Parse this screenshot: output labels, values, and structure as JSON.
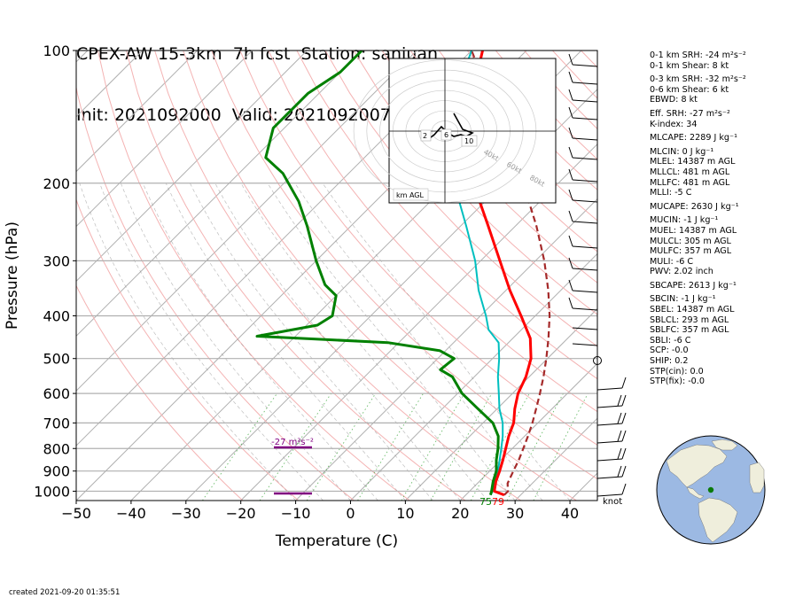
{
  "title": {
    "line1": "CPEX-AW 15-3km  7h fcst  Station: sanjuan",
    "line2": "Init: 2021092000  Valid: 202109200700 UTC"
  },
  "chart_data": {
    "type": "line",
    "subtype": "skew-T log-p",
    "xlabel": "Temperature (C)",
    "ylabel": "Pressure (hPa)",
    "xlim": [
      -50,
      45
    ],
    "ylim": [
      1050,
      100
    ],
    "y_scale": "log",
    "x_ticks": [
      -50,
      -40,
      -30,
      -20,
      -10,
      0,
      10,
      20,
      30,
      40
    ],
    "y_ticks": [
      1000,
      900,
      800,
      700,
      600,
      500,
      400,
      300,
      200,
      100
    ],
    "x_tick_labels": [
      "−50",
      "−40",
      "−30",
      "−20",
      "−10",
      "0",
      "10",
      "20",
      "30",
      "40"
    ],
    "y_tick_labels": [
      "1000",
      "900",
      "800",
      "700",
      "600",
      "500",
      "400",
      "300",
      "200",
      "100"
    ],
    "colors": {
      "temperature": "#ff0000",
      "dewpoint": "#008000",
      "wetbulb": "#00bfbf",
      "parcel": "#a52a2a",
      "srh_marker": "#800080"
    },
    "series": [
      {
        "key": "temperature",
        "points": [
          [
            1020,
            27
          ],
          [
            1000,
            24.5
          ],
          [
            950,
            23
          ],
          [
            900,
            21.8
          ],
          [
            850,
            20.4
          ],
          [
            800,
            18.8
          ],
          [
            750,
            17.1
          ],
          [
            700,
            15.6
          ],
          [
            650,
            13.2
          ],
          [
            600,
            11
          ],
          [
            550,
            9.4
          ],
          [
            500,
            7
          ],
          [
            450,
            3.2
          ],
          [
            400,
            -2.6
          ],
          [
            350,
            -9.3
          ],
          [
            300,
            -16.5
          ],
          [
            250,
            -25
          ],
          [
            200,
            -35.5
          ],
          [
            175,
            -41
          ],
          [
            150,
            -47
          ],
          [
            125,
            -52
          ],
          [
            100,
            -58
          ]
        ]
      },
      {
        "key": "dewpoint",
        "points": [
          [
            1020,
            24.5
          ],
          [
            1000,
            24
          ],
          [
            950,
            22.5
          ],
          [
            900,
            21.2
          ],
          [
            850,
            19.2
          ],
          [
            800,
            17.4
          ],
          [
            750,
            15.2
          ],
          [
            700,
            11.8
          ],
          [
            650,
            6.5
          ],
          [
            600,
            0.8
          ],
          [
            550,
            -4
          ],
          [
            530,
            -7.5
          ],
          [
            500,
            -7
          ],
          [
            480,
            -11
          ],
          [
            460,
            -22
          ],
          [
            445,
            -47
          ],
          [
            420,
            -38
          ],
          [
            400,
            -37
          ],
          [
            360,
            -40
          ],
          [
            340,
            -44
          ],
          [
            300,
            -50
          ],
          [
            250,
            -58
          ],
          [
            220,
            -64
          ],
          [
            190,
            -72
          ],
          [
            175,
            -78
          ],
          [
            150,
            -82
          ],
          [
            125,
            -82
          ],
          [
            112,
            -80
          ],
          [
            100,
            -80
          ]
        ]
      },
      {
        "key": "wetbulb",
        "points": [
          [
            1020,
            24.5
          ],
          [
            1000,
            24.2
          ],
          [
            950,
            22.8
          ],
          [
            900,
            21.5
          ],
          [
            850,
            19.8
          ],
          [
            800,
            18
          ],
          [
            750,
            16
          ],
          [
            700,
            13.6
          ],
          [
            650,
            10.4
          ],
          [
            600,
            7.5
          ],
          [
            550,
            4.3
          ],
          [
            500,
            1.2
          ],
          [
            460,
            -1.8
          ],
          [
            430,
            -6
          ],
          [
            400,
            -9
          ],
          [
            350,
            -15
          ],
          [
            300,
            -21
          ],
          [
            250,
            -29
          ],
          [
            200,
            -39
          ],
          [
            175,
            -45
          ],
          [
            150,
            -51
          ],
          [
            125,
            -55
          ],
          [
            100,
            -60
          ]
        ]
      },
      {
        "key": "parcel",
        "points": [
          [
            1020,
            27
          ],
          [
            1000,
            27
          ],
          [
            960,
            25.5
          ],
          [
            900,
            24.3
          ],
          [
            850,
            23.3
          ],
          [
            800,
            22
          ],
          [
            750,
            20.6
          ],
          [
            700,
            19
          ],
          [
            650,
            17.1
          ],
          [
            600,
            15
          ],
          [
            550,
            12.6
          ],
          [
            500,
            9.8
          ],
          [
            450,
            6.5
          ],
          [
            400,
            2.6
          ],
          [
            350,
            -2.3
          ],
          [
            300,
            -8.4
          ],
          [
            250,
            -16.2
          ],
          [
            200,
            -26.4
          ],
          [
            150,
            -40.2
          ],
          [
            125,
            -49.2
          ],
          [
            100,
            -60
          ]
        ]
      }
    ],
    "annotations": [
      {
        "text": "-27 m²s⁻²",
        "pressure": 800
      },
      {
        "text": "75",
        "temperature": 24
      },
      {
        "text": "79",
        "temperature": 27
      }
    ],
    "wind_units_label": "knot",
    "hodograph": {
      "axis_label": "km AGL",
      "ring_labels": [
        "40kt",
        "60kt",
        "80kt"
      ],
      "height_labels": [
        "2",
        "6",
        "10"
      ]
    }
  },
  "stats": [
    {
      "text": "0-1 km SRH: -24 m²s⁻²"
    },
    {
      "text": "0-1 km Shear: 8 kt"
    },
    {
      "text": "0-3 km SRH: -32 m²s⁻²",
      "gap": true
    },
    {
      "text": "0-6 km Shear: 6 kt"
    },
    {
      "text": "EBWD: 8 kt"
    },
    {
      "text": "Eff. SRH: -27 m²s⁻²",
      "gap": true
    },
    {
      "text": "K-index: 34"
    },
    {
      "text": "MLCAPE: 2289 J kg⁻¹",
      "gap": true
    },
    {
      "text": "MLCIN: 0 J kg⁻¹",
      "gap": true
    },
    {
      "text": "MLEL: 14387 m AGL"
    },
    {
      "text": "MLLCL: 481 m AGL"
    },
    {
      "text": "MLLFC: 481 m AGL"
    },
    {
      "text": "MLLI: -5 C"
    },
    {
      "text": "MUCAPE: 2630 J kg⁻¹",
      "gap": true
    },
    {
      "text": "MUCIN: -1 J kg⁻¹",
      "gap": true
    },
    {
      "text": "MUEL: 14387 m AGL"
    },
    {
      "text": "MULCL: 305 m AGL"
    },
    {
      "text": "MULFC: 357 m AGL"
    },
    {
      "text": "MULI: -6 C"
    },
    {
      "text": "PWV: 2.02 inch"
    },
    {
      "text": "SBCAPE: 2613 J kg⁻¹",
      "gap": true
    },
    {
      "text": "SBCIN: -1 J kg⁻¹",
      "gap": true
    },
    {
      "text": "SBEL: 14387 m AGL"
    },
    {
      "text": "SBLCL: 293 m AGL"
    },
    {
      "text": "SBLFC: 357 m AGL"
    },
    {
      "text": "SBLI: -6 C"
    },
    {
      "text": "SCP: -0.0"
    },
    {
      "text": "SHIP: 0.2"
    },
    {
      "text": "STP(cin): 0.0"
    },
    {
      "text": "STP(fix): -0.0"
    }
  ],
  "created": "created 2021-09-20 01:35:51"
}
